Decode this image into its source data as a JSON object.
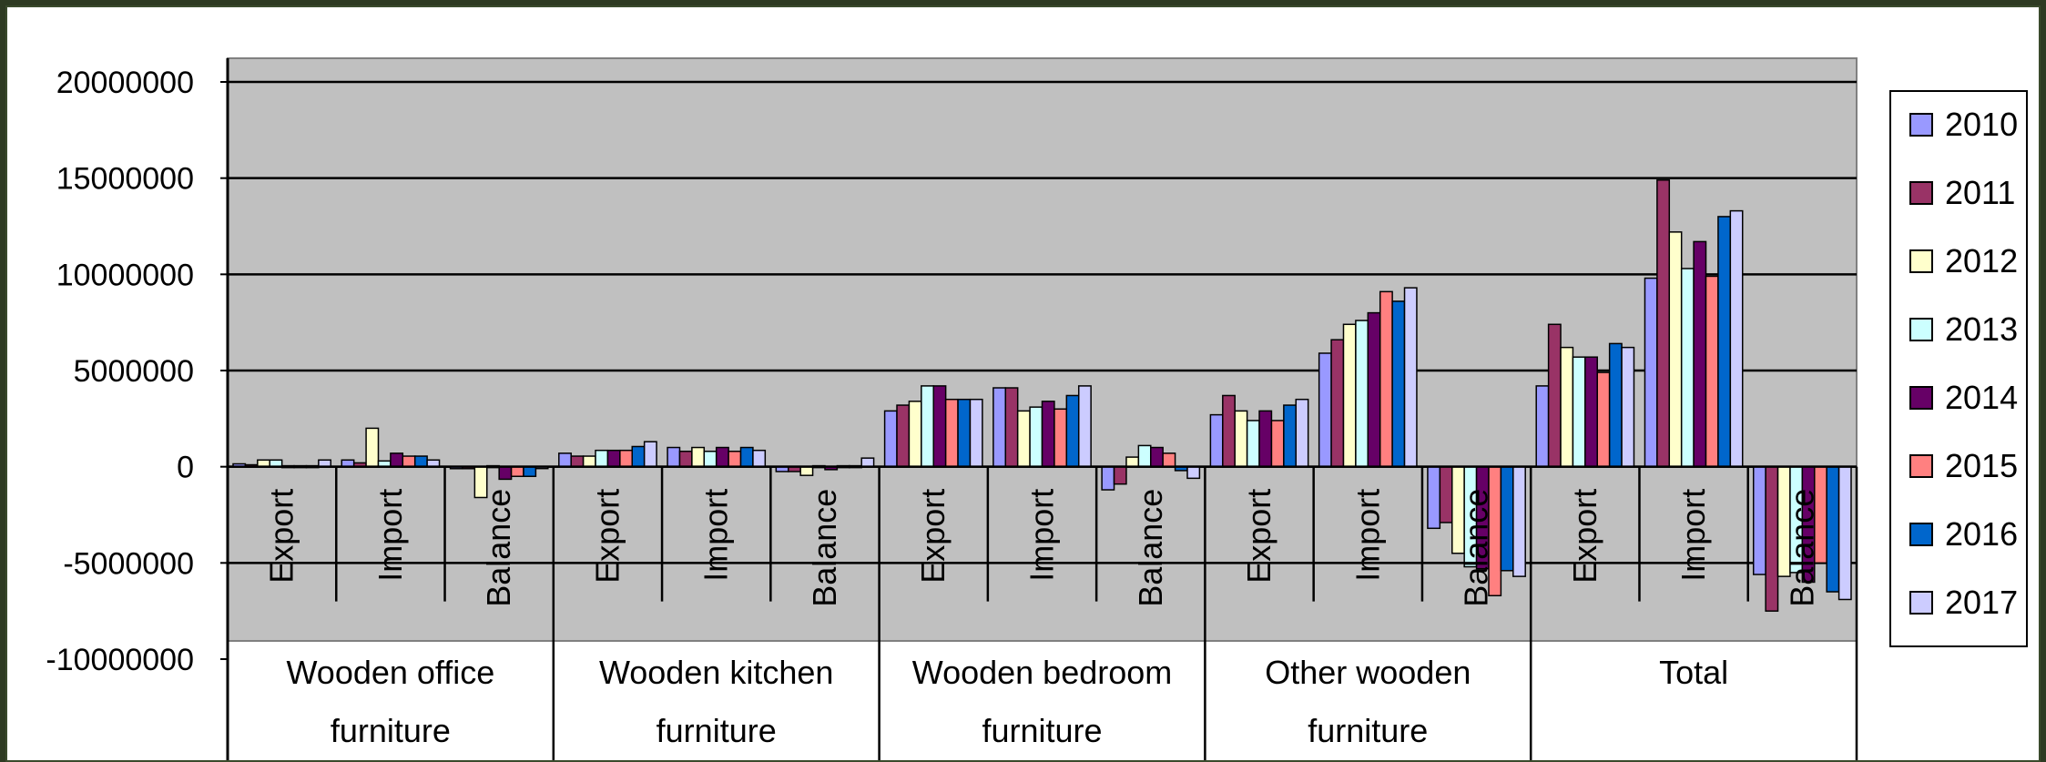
{
  "chart_data": {
    "type": "bar",
    "title": "",
    "xlabel": "",
    "ylabel": "",
    "ylim": [
      -10000000,
      20000000
    ],
    "y_ticks": [
      "20000000",
      "15000000",
      "10000000",
      "5000000",
      "0",
      "-5000000",
      "-10000000"
    ],
    "y_tick_values": [
      20000000,
      15000000,
      10000000,
      5000000,
      0,
      -5000000,
      -10000000
    ],
    "grid": true,
    "legend_position": "right",
    "groups": [
      {
        "label_line1": "Wooden office",
        "label_line2": "furniture"
      },
      {
        "label_line1": "Wooden kitchen",
        "label_line2": "furniture"
      },
      {
        "label_line1": "Wooden bedroom",
        "label_line2": "furniture"
      },
      {
        "label_line1": "Other wooden",
        "label_line2": "furniture"
      },
      {
        "label_line1": "Total",
        "label_line2": ""
      }
    ],
    "subcategories": [
      "Export",
      "Import",
      "Balance"
    ],
    "categories": [
      "Wooden office furniture - Export",
      "Wooden office furniture - Import",
      "Wooden office furniture - Balance",
      "Wooden kitchen furniture - Export",
      "Wooden kitchen furniture - Import",
      "Wooden kitchen furniture - Balance",
      "Wooden bedroom furniture - Export",
      "Wooden bedroom furniture - Import",
      "Wooden bedroom furniture - Balance",
      "Other wooden furniture - Export",
      "Other wooden furniture - Import",
      "Other wooden furniture - Balance",
      "Total - Export",
      "Total - Import",
      "Total - Balance"
    ],
    "series": [
      {
        "name": "2010",
        "color": "#9999ff",
        "values": [
          150000,
          350000,
          -100000,
          700000,
          1000000,
          -250000,
          2900000,
          4100000,
          -1200000,
          2700000,
          5900000,
          -3200000,
          4200000,
          9800000,
          -5600000
        ]
      },
      {
        "name": "2011",
        "color": "#993366",
        "values": [
          100000,
          200000,
          -100000,
          550000,
          800000,
          -250000,
          3200000,
          4100000,
          -900000,
          3700000,
          6600000,
          -2900000,
          7400000,
          14900000,
          -7500000
        ]
      },
      {
        "name": "2012",
        "color": "#ffffcc",
        "values": [
          350000,
          2000000,
          -1600000,
          550000,
          1000000,
          -450000,
          3400000,
          2900000,
          500000,
          2900000,
          7400000,
          -4500000,
          6200000,
          12200000,
          -5700000
        ]
      },
      {
        "name": "2013",
        "color": "#ccffff",
        "values": [
          350000,
          300000,
          50000,
          850000,
          800000,
          50000,
          4200000,
          3100000,
          1100000,
          2400000,
          7600000,
          -5200000,
          5700000,
          10300000,
          -5500000
        ]
      },
      {
        "name": "2014",
        "color": "#660066",
        "values": [
          50000,
          700000,
          -650000,
          850000,
          1000000,
          -150000,
          4200000,
          3400000,
          1000000,
          2900000,
          8000000,
          -5300000,
          5700000,
          11700000,
          -6000000
        ]
      },
      {
        "name": "2015",
        "color": "#ff8080",
        "values": [
          50000,
          550000,
          -500000,
          850000,
          800000,
          50000,
          3500000,
          3000000,
          700000,
          2400000,
          9100000,
          -6700000,
          4900000,
          9900000,
          -5000000
        ]
      },
      {
        "name": "2016",
        "color": "#0066cc",
        "values": [
          50000,
          550000,
          -500000,
          1050000,
          1000000,
          50000,
          3500000,
          3700000,
          -200000,
          3200000,
          8600000,
          -5400000,
          6400000,
          13000000,
          -6500000
        ]
      },
      {
        "name": "2017",
        "color": "#ccccff",
        "values": [
          350000,
          350000,
          0,
          1300000,
          850000,
          450000,
          3500000,
          4200000,
          -600000,
          3500000,
          9300000,
          -5700000,
          6200000,
          13300000,
          -6900000
        ]
      }
    ]
  },
  "colors": {
    "plot_background": "#c0c0c0",
    "grid": "#000000",
    "frame_border": "#3a4a2c"
  }
}
